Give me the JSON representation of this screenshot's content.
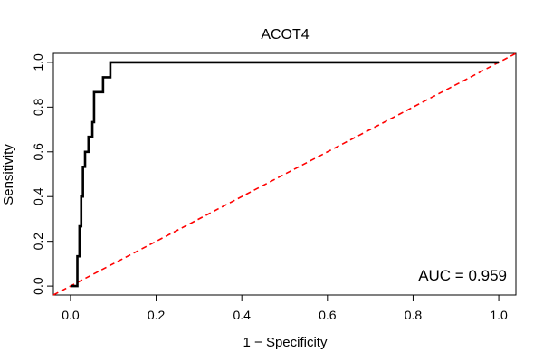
{
  "chart_data": {
    "type": "line",
    "title": "ACOT4",
    "xlabel": "1 − Specificity",
    "ylabel": "Sensitivity",
    "xlim": [
      -0.04,
      1.04
    ],
    "ylim": [
      -0.04,
      1.04
    ],
    "x_ticks": [
      0.0,
      0.2,
      0.4,
      0.6,
      0.8,
      1.0
    ],
    "x_tick_labels": [
      "0.0",
      "0.2",
      "0.4",
      "0.6",
      "0.8",
      "1.0"
    ],
    "y_ticks": [
      0.0,
      0.2,
      0.4,
      0.6,
      0.8,
      1.0
    ],
    "y_tick_labels": [
      "0.0",
      "0.2",
      "0.4",
      "0.6",
      "0.8",
      "1.0"
    ],
    "grid": false,
    "annotation": "AUC = 0.959",
    "series": [
      {
        "name": "ROC",
        "color": "#000000",
        "style": "solid-step",
        "x": [
          0.0,
          0.016,
          0.016,
          0.021,
          0.021,
          0.025,
          0.025,
          0.029,
          0.029,
          0.034,
          0.034,
          0.042,
          0.042,
          0.051,
          0.051,
          0.055,
          0.055,
          0.059,
          0.059,
          0.076,
          0.076,
          0.093,
          0.093,
          1.0
        ],
        "y": [
          0.0,
          0.0,
          0.133,
          0.133,
          0.267,
          0.267,
          0.4,
          0.4,
          0.533,
          0.533,
          0.6,
          0.6,
          0.667,
          0.667,
          0.733,
          0.733,
          0.867,
          0.867,
          0.867,
          0.867,
          0.933,
          0.933,
          1.0,
          1.0
        ]
      },
      {
        "name": "reference",
        "color": "#ff0000",
        "style": "dashed",
        "x": [
          -0.04,
          1.04
        ],
        "y": [
          -0.04,
          1.04
        ]
      }
    ]
  }
}
